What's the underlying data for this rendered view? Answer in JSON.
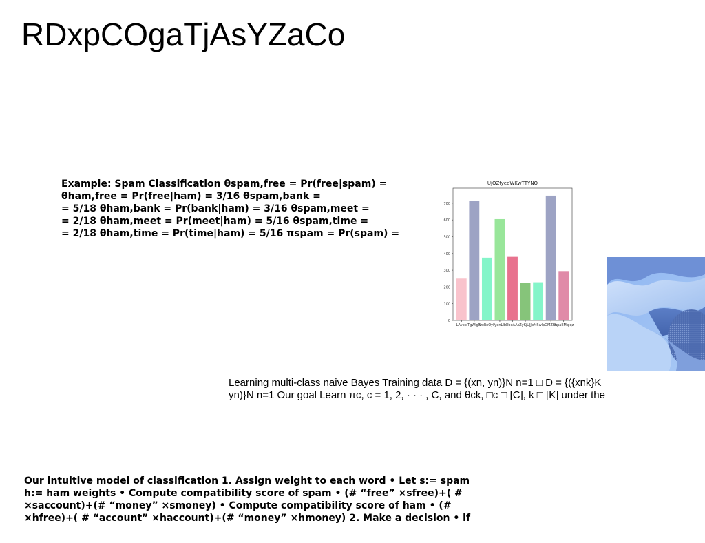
{
  "page": {
    "title": "RDxpCOgaTjAsYZaCo"
  },
  "blocks": {
    "spam_lines": [
      "Example: Spam Classification θspam,free = Pr(free|spam) =",
      "θham,free = Pr(free|ham) = 3/16 θspam,bank =",
      "= 5/18 θham,bank = Pr(bank|ham) = 3/16 θspam,meet =",
      "= 2/18 θham,meet = Pr(meet|ham) = 5/16 θspam,time =",
      "= 2/18 θham,time = Pr(time|ham) = 5/16 πspam = Pr(spam) ="
    ],
    "bayes_lines": [
      "Learning multi-class naive Bayes Training data D = {(xn, yn)}N n=1 □ D = {({xnk}K",
      "yn)}N n=1 Our goal Learn πc, c = 1, 2, · · · , C, and θck, □c □ [C], k □ [K] under the"
    ],
    "intuitive_lines": [
      "Our intuitive model of classification 1. Assign weight to each word • Let s:= spam",
      "h:= ham weights • Compute compatibility score of spam • (# “free” ×sfree)+( #",
      "×saccount)+(# “money” ×smoney) • Compute compatibility score of ham • (#",
      "×hfree)+( # “account” ×haccount)+(# “money” ×hmoney) 2. Make a decision • if"
    ]
  },
  "image": {
    "icon": "abstract-3d-render"
  },
  "chart_data": {
    "type": "bar",
    "title": "UjOZfyeeWKwTTYNQ",
    "categories": [
      "LAvpp",
      "TgWlgN",
      "IzoRoOyF",
      "IyenLIb",
      "ObeAAk",
      "ZyKjUJJ",
      "bMSwlp",
      "OMZKh",
      "mpaEMqlqz"
    ],
    "values": [
      250,
      715,
      375,
      605,
      380,
      225,
      228,
      745,
      295
    ],
    "colors": [
      "#f9c3cc",
      "#9da3c4",
      "#84f5c9",
      "#99e69a",
      "#e8728e",
      "#86c47a",
      "#84f5c9",
      "#9da3c4",
      "#e08aa8"
    ],
    "yticks": [
      0,
      100,
      200,
      300,
      400,
      500,
      600,
      700
    ],
    "ylim": [
      0,
      790
    ],
    "xlabel": "",
    "ylabel": "",
    "grid": false
  }
}
